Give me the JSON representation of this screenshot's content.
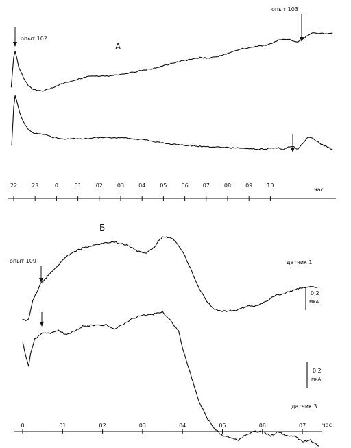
{
  "chart_data": [
    {
      "panel": "А",
      "type": "line",
      "tick_labels": [
        "22",
        "23",
        "0",
        "01",
        "02",
        "03",
        "04",
        "05",
        "06",
        "07",
        "08",
        "09",
        "10"
      ],
      "axis_unit": "час",
      "annotations": {
        "start": "опыт 102",
        "end": "опыт 103"
      },
      "series": [
        {
          "points": [
            [
              -0.25,
              0.3
            ],
            [
              0,
              0.88
            ],
            [
              0.15,
              1.0
            ],
            [
              0.5,
              0.7
            ],
            [
              1,
              0.48
            ],
            [
              1.5,
              0.33
            ],
            [
              2,
              0.26
            ],
            [
              2.5,
              0.24
            ],
            [
              3,
              0.23
            ],
            [
              3.5,
              0.26
            ],
            [
              4,
              0.3
            ],
            [
              5,
              0.37
            ],
            [
              6,
              0.43
            ],
            [
              7,
              0.48
            ],
            [
              8,
              0.52
            ],
            [
              9,
              0.51
            ],
            [
              10,
              0.52
            ],
            [
              11,
              0.54
            ],
            [
              12,
              0.58
            ],
            [
              13,
              0.62
            ],
            [
              14,
              0.65
            ],
            [
              15,
              0.7
            ],
            [
              16,
              0.75
            ],
            [
              17,
              0.8
            ],
            [
              18,
              0.83
            ],
            [
              19,
              0.87
            ],
            [
              20,
              0.86
            ],
            [
              21,
              0.9
            ],
            [
              22,
              0.96
            ],
            [
              23,
              1.03
            ],
            [
              24,
              1.06
            ],
            [
              25,
              1.09
            ],
            [
              26,
              1.12
            ],
            [
              27,
              1.2
            ],
            [
              28,
              1.22
            ],
            [
              28.5,
              1.19
            ],
            [
              29,
              1.17
            ],
            [
              29.5,
              1.23
            ],
            [
              30,
              1.3
            ],
            [
              30.5,
              1.35
            ],
            [
              31,
              1.34
            ],
            [
              32,
              1.33
            ],
            [
              32.5,
              1.34
            ]
          ]
        },
        {
          "points": [
            [
              -0.2,
              -0.1
            ],
            [
              0,
              0.4
            ],
            [
              0.15,
              0.55
            ],
            [
              0.3,
              0.48
            ],
            [
              0.6,
              0.33
            ],
            [
              1,
              0.2
            ],
            [
              1.5,
              0.1
            ],
            [
              2,
              0.05
            ],
            [
              3,
              0.04
            ],
            [
              4,
              0.0
            ],
            [
              5,
              -0.02
            ],
            [
              6,
              -0.02
            ],
            [
              7,
              -0.02
            ],
            [
              8,
              -0.01
            ],
            [
              9,
              0.0
            ],
            [
              10,
              -0.01
            ],
            [
              11,
              0.0
            ],
            [
              12,
              -0.02
            ],
            [
              13,
              -0.03
            ],
            [
              14,
              -0.05
            ],
            [
              15,
              -0.07
            ],
            [
              16,
              -0.09
            ],
            [
              17,
              -0.1
            ],
            [
              18,
              -0.11
            ],
            [
              19,
              -0.12
            ],
            [
              20,
              -0.13
            ],
            [
              21,
              -0.13
            ],
            [
              22,
              -0.14
            ],
            [
              23,
              -0.14
            ],
            [
              24,
              -0.15
            ],
            [
              25,
              -0.16
            ],
            [
              26,
              -0.15
            ],
            [
              27,
              -0.14
            ],
            [
              27.5,
              -0.16
            ],
            [
              28,
              -0.13
            ],
            [
              28.5,
              -0.12
            ],
            [
              29,
              -0.16
            ],
            [
              29.5,
              -0.08
            ],
            [
              30,
              0.0
            ],
            [
              30.5,
              -0.01
            ],
            [
              31,
              -0.06
            ],
            [
              31.5,
              -0.1
            ],
            [
              32,
              -0.13
            ],
            [
              32.5,
              -0.16
            ]
          ]
        }
      ]
    },
    {
      "panel": "Б",
      "type": "line",
      "tick_labels": [
        "0",
        "01",
        "02",
        "03",
        "04",
        "05",
        "06",
        "07"
      ],
      "axis_unit": "час",
      "annotations": {
        "start": "опыт 109",
        "series1": "датчик 1",
        "series2": "датчик 3"
      },
      "scale_bar": {
        "value": "0,2",
        "unit": "мкА"
      },
      "series": [
        {
          "points": [
            [
              0,
              0.02
            ],
            [
              0.08,
              0.0
            ],
            [
              0.15,
              0.02
            ],
            [
              0.25,
              0.25
            ],
            [
              0.45,
              0.46
            ],
            [
              0.7,
              0.6
            ],
            [
              0.9,
              0.7
            ],
            [
              1.1,
              0.8
            ],
            [
              1.3,
              0.86
            ],
            [
              1.5,
              0.9
            ],
            [
              1.8,
              0.94
            ],
            [
              2,
              0.96
            ],
            [
              2.3,
              0.98
            ],
            [
              2.6,
              0.94
            ],
            [
              2.9,
              0.86
            ],
            [
              3.1,
              0.84
            ],
            [
              3.3,
              0.92
            ],
            [
              3.5,
              1.04
            ],
            [
              3.7,
              1.03
            ],
            [
              3.8,
              1.0
            ],
            [
              4.0,
              0.86
            ],
            [
              4.2,
              0.65
            ],
            [
              4.4,
              0.42
            ],
            [
              4.6,
              0.25
            ],
            [
              4.8,
              0.15
            ],
            [
              5,
              0.12
            ],
            [
              5.3,
              0.13
            ],
            [
              5.6,
              0.18
            ],
            [
              5.9,
              0.19
            ],
            [
              6.1,
              0.25
            ],
            [
              6.3,
              0.31
            ],
            [
              6.6,
              0.35
            ],
            [
              6.8,
              0.39
            ],
            [
              7.0,
              0.41
            ],
            [
              7.2,
              0.42
            ],
            [
              7.4,
              0.42
            ]
          ]
        },
        {
          "points": [
            [
              0,
              0.22
            ],
            [
              0.06,
              0.15
            ],
            [
              0.15,
              0.05
            ],
            [
              0.2,
              0.14
            ],
            [
              0.3,
              0.24
            ],
            [
              0.5,
              0.29
            ],
            [
              0.7,
              0.28
            ],
            [
              0.9,
              0.3
            ],
            [
              1.1,
              0.27
            ],
            [
              1.3,
              0.3
            ],
            [
              1.5,
              0.33
            ],
            [
              1.8,
              0.34
            ],
            [
              2.1,
              0.34
            ],
            [
              2.3,
              0.31
            ],
            [
              2.6,
              0.36
            ],
            [
              2.8,
              0.39
            ],
            [
              3.0,
              0.41
            ],
            [
              3.2,
              0.41
            ],
            [
              3.5,
              0.43
            ],
            [
              3.7,
              0.37
            ],
            [
              3.9,
              0.3
            ],
            [
              4.0,
              0.18
            ],
            [
              4.2,
              0.0
            ],
            [
              4.4,
              -0.18
            ],
            [
              4.6,
              -0.3
            ],
            [
              4.8,
              -0.38
            ],
            [
              5,
              -0.43
            ],
            [
              5.2,
              -0.44
            ],
            [
              5.4,
              -0.46
            ],
            [
              5.6,
              -0.42
            ],
            [
              5.8,
              -0.4
            ],
            [
              6.0,
              -0.4
            ],
            [
              6.2,
              -0.43
            ],
            [
              6.4,
              -0.4
            ],
            [
              6.6,
              -0.43
            ],
            [
              6.8,
              -0.43
            ],
            [
              7.0,
              -0.47
            ],
            [
              7.2,
              -0.46
            ],
            [
              7.4,
              -0.5
            ]
          ]
        }
      ]
    }
  ]
}
